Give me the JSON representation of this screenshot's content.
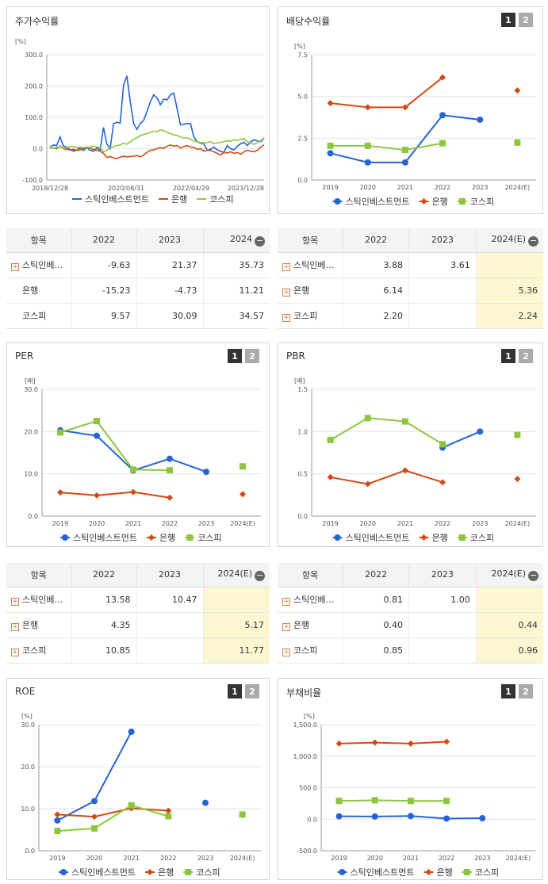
{
  "legend_names": {
    "stick": "스틱인베스트먼트",
    "bank": "은행",
    "kospi": "코스피"
  },
  "colors": {
    "stick": "#2563d6",
    "bank": "#d24a12",
    "kospi": "#8cc63f"
  },
  "tab_labels": [
    "1",
    "2"
  ],
  "panels": {
    "stock": {
      "title": "주가수익률",
      "unit": "[%]"
    },
    "dividend": {
      "title": "배당수익률",
      "unit": "[%]"
    },
    "per": {
      "title": "PER",
      "unit": "[배]"
    },
    "pbr": {
      "title": "PBR",
      "unit": "[배]"
    },
    "roe": {
      "title": "ROE",
      "unit": "[%]"
    },
    "debt": {
      "title": "부채비율",
      "unit": "[%]"
    }
  },
  "tables": {
    "dividend_left": {
      "headers": [
        "항목",
        "2022",
        "2023",
        "2024"
      ],
      "rows": [
        {
          "name": "스틱인베…",
          "v": [
            "-9.63",
            "21.37",
            "35.73"
          ]
        },
        {
          "name": "은행",
          "v": [
            "-15.23",
            "-4.73",
            "11.21"
          ]
        },
        {
          "name": "코스피",
          "v": [
            "9.57",
            "30.09",
            "34.57"
          ]
        }
      ]
    },
    "dividend_right": {
      "headers": [
        "항목",
        "2022",
        "2023",
        "2024(E)"
      ],
      "rows": [
        {
          "name": "스틱인베…",
          "v": [
            "3.88",
            "3.61",
            ""
          ]
        },
        {
          "name": "은행",
          "v": [
            "6.14",
            "",
            "5.36"
          ]
        },
        {
          "name": "코스피",
          "v": [
            "2.20",
            "",
            "2.24"
          ]
        }
      ]
    },
    "per": {
      "headers": [
        "항목",
        "2022",
        "2023",
        "2024(E)"
      ],
      "rows": [
        {
          "name": "스틱인베…",
          "v": [
            "13.58",
            "10.47",
            ""
          ]
        },
        {
          "name": "은행",
          "v": [
            "4.35",
            "",
            "5.17"
          ]
        },
        {
          "name": "코스피",
          "v": [
            "10.85",
            "",
            "11.77"
          ]
        }
      ]
    },
    "pbr": {
      "headers": [
        "항목",
        "2022",
        "2023",
        "2024(E)"
      ],
      "rows": [
        {
          "name": "스틱인베…",
          "v": [
            "0.81",
            "1.00",
            ""
          ]
        },
        {
          "name": "은행",
          "v": [
            "0.40",
            "",
            "0.44"
          ]
        },
        {
          "name": "코스피",
          "v": [
            "0.85",
            "",
            "0.96"
          ]
        }
      ]
    }
  },
  "chart_data": [
    {
      "id": "stock",
      "type": "line",
      "x_ticks": [
        "2018/12/28",
        "2020/08/31",
        "2022/04/29",
        "2023/12/28"
      ],
      "ylim": [
        -100,
        300
      ],
      "y_ticks": [
        "300.0",
        "200.0",
        "100.0",
        "0.0",
        "-100.0"
      ],
      "series": [
        {
          "name": "스틱인베스트먼트",
          "values": [
            5,
            12,
            10,
            38,
            8,
            5,
            -3,
            -8,
            -5,
            2,
            -6,
            3,
            -5,
            -8,
            2,
            -4,
            68,
            15,
            0,
            80,
            84,
            82,
            203,
            232,
            150,
            80,
            62,
            80,
            90,
            118,
            150,
            172,
            162,
            140,
            158,
            156,
            172,
            178,
            128,
            76,
            78,
            80,
            80,
            38,
            22,
            18,
            15,
            -5,
            -2,
            5,
            -4,
            -8,
            -12,
            10,
            0,
            -4,
            8,
            16,
            20,
            10,
            22,
            28,
            25,
            22,
            34
          ]
        },
        {
          "name": "은행",
          "values": [
            0,
            3,
            0,
            8,
            0,
            -2,
            -4,
            -2,
            -5,
            -4,
            0,
            5,
            2,
            -3,
            -5,
            -8,
            -15,
            -28,
            -25,
            -30,
            -32,
            -27,
            -24,
            -26,
            -25,
            -24,
            -22,
            -26,
            -20,
            -12,
            -5,
            -4,
            0,
            3,
            1,
            8,
            12,
            8,
            10,
            2,
            7,
            10,
            5,
            4,
            -2,
            0,
            -8,
            -4,
            -6,
            -10,
            -15,
            -20,
            -12,
            -14,
            -10,
            -15,
            -12,
            -18,
            -10,
            -5,
            -8,
            -10,
            -5,
            5,
            12
          ]
        },
        {
          "name": "코스피",
          "values": [
            0,
            2,
            4,
            6,
            1,
            3,
            6,
            7,
            3,
            5,
            4,
            2,
            5,
            8,
            6,
            3,
            -10,
            -5,
            2,
            7,
            10,
            12,
            18,
            14,
            22,
            30,
            35,
            42,
            45,
            48,
            52,
            56,
            54,
            60,
            58,
            52,
            48,
            44,
            42,
            38,
            34,
            35,
            30,
            25,
            22,
            20,
            18,
            20,
            22,
            16,
            18,
            20,
            22,
            25,
            24,
            28,
            26,
            30,
            32,
            22,
            18,
            14,
            20,
            25,
            35
          ]
        }
      ]
    },
    {
      "id": "dividend",
      "type": "line",
      "categories": [
        "2019",
        "2020",
        "2021",
        "2022",
        "2023",
        "2024(E)"
      ],
      "ylim": [
        0,
        7.5
      ],
      "y_ticks": [
        "7.5",
        "5.0",
        "2.5",
        "0.0"
      ],
      "series": [
        {
          "name": "스틱인베스트먼트",
          "values": [
            1.6,
            1.05,
            1.05,
            3.88,
            3.61,
            null
          ]
        },
        {
          "name": "은행",
          "values": [
            4.6,
            4.35,
            4.35,
            6.14,
            null,
            5.36
          ]
        },
        {
          "name": "코스피",
          "values": [
            2.05,
            2.05,
            1.8,
            2.2,
            null,
            2.24
          ]
        }
      ]
    },
    {
      "id": "per",
      "type": "line",
      "categories": [
        "2019",
        "2020",
        "2021",
        "2022",
        "2023",
        "2024(E)"
      ],
      "ylim": [
        0,
        30
      ],
      "y_ticks": [
        "30.0",
        "20.0",
        "10.0",
        "0.0"
      ],
      "series": [
        {
          "name": "스틱인베스트먼트",
          "values": [
            20.3,
            19.0,
            10.8,
            13.58,
            10.47,
            null
          ]
        },
        {
          "name": "은행",
          "values": [
            5.6,
            4.9,
            5.7,
            4.35,
            null,
            5.17
          ]
        },
        {
          "name": "코스피",
          "values": [
            19.8,
            22.5,
            11.0,
            10.85,
            null,
            11.77
          ]
        }
      ]
    },
    {
      "id": "pbr",
      "type": "line",
      "categories": [
        "2019",
        "2020",
        "2021",
        "2022",
        "2023",
        "2024(E)"
      ],
      "ylim": [
        0,
        1.5
      ],
      "y_ticks": [
        "1.5",
        "1.0",
        "0.5",
        "0.0"
      ],
      "series": [
        {
          "name": "스틱인베스트먼트",
          "values": [
            null,
            null,
            null,
            0.81,
            1.0,
            null
          ]
        },
        {
          "name": "은행",
          "values": [
            0.46,
            0.38,
            0.54,
            0.4,
            null,
            0.44
          ]
        },
        {
          "name": "코스피",
          "values": [
            0.9,
            1.16,
            1.12,
            0.85,
            null,
            0.96
          ]
        }
      ]
    },
    {
      "id": "roe",
      "type": "line",
      "categories": [
        "2019",
        "2020",
        "2021",
        "2022",
        "2023",
        "2024(E)"
      ],
      "ylim": [
        0,
        30
      ],
      "y_ticks": [
        "30.0",
        "20.0",
        "10.0",
        "0.0"
      ],
      "series": [
        {
          "name": "스틱인베스트먼트",
          "values": [
            7.2,
            11.8,
            28.3,
            null,
            11.4,
            null
          ]
        },
        {
          "name": "은행",
          "values": [
            8.6,
            8.1,
            10.1,
            9.5,
            null,
            null
          ]
        },
        {
          "name": "코스피",
          "values": [
            4.7,
            5.3,
            10.8,
            8.2,
            null,
            8.6
          ]
        }
      ]
    },
    {
      "id": "debt",
      "type": "line",
      "categories": [
        "2019",
        "2020",
        "2021",
        "2022",
        "2023",
        "2024(E)"
      ],
      "ylim": [
        -500,
        1500
      ],
      "y_ticks": [
        "1,500.0",
        "1,000.0",
        "500.0",
        "0.0",
        "-500.0"
      ],
      "series": [
        {
          "name": "스틱인베스트먼트",
          "values": [
            45,
            42,
            50,
            10,
            15,
            null
          ]
        },
        {
          "name": "은행",
          "values": [
            1200,
            1215,
            1200,
            1230,
            null,
            null
          ]
        },
        {
          "name": "코스피",
          "values": [
            290,
            300,
            290,
            290,
            null,
            null
          ]
        }
      ]
    }
  ]
}
